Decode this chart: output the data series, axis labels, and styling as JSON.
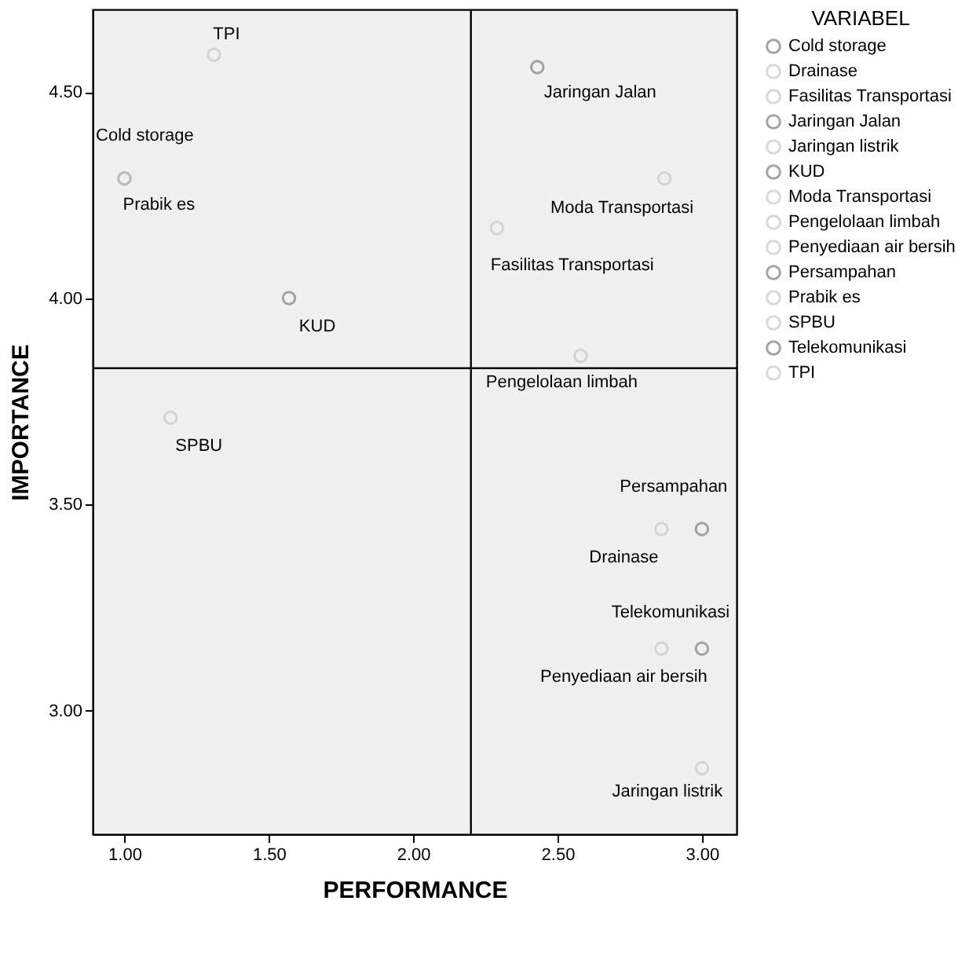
{
  "chart_data": {
    "type": "scatter",
    "xlabel": "PERFORMANCE",
    "ylabel": "IMPORTANCE",
    "legend_title": "VARIABEL",
    "legend": "right",
    "marker": "circle",
    "grid": false,
    "xlim": [
      0.89,
      3.12
    ],
    "ylim": [
      2.7,
      4.7
    ],
    "xticks": [
      {
        "value": 1,
        "label": "1.00"
      },
      {
        "value": 1.5,
        "label": "1.50"
      },
      {
        "value": 2,
        "label": "2.00"
      },
      {
        "value": 2.5,
        "label": "2.50"
      },
      {
        "value": 3,
        "label": "3.00"
      }
    ],
    "yticks": [
      {
        "value": 3,
        "label": "3.00"
      },
      {
        "value": 3.5,
        "label": "3.50"
      },
      {
        "value": 4,
        "label": "4.00"
      },
      {
        "value": 4.5,
        "label": "4.50"
      }
    ],
    "ref_lines": [
      {
        "axis": "x",
        "value": 2.2,
        "color": "#000000"
      },
      {
        "axis": "y",
        "value": 3.83,
        "color": "#000000"
      }
    ],
    "series": [
      {
        "name": "Cold storage",
        "color": "#808080",
        "x": [
          1.0
        ],
        "values": [
          4.29
        ]
      },
      {
        "name": "Drainase",
        "color": "#c8c8c8",
        "x": [
          2.86
        ],
        "values": [
          3.44
        ]
      },
      {
        "name": "Fasilitas Transportasi",
        "color": "#c8c8c8",
        "x": [
          2.29
        ],
        "values": [
          4.17
        ]
      },
      {
        "name": "Jaringan Jalan",
        "color": "#808080",
        "x": [
          2.43
        ],
        "values": [
          4.56
        ]
      },
      {
        "name": "Jaringan listrik",
        "color": "#c8c8c8",
        "x": [
          3.0
        ],
        "values": [
          2.86
        ]
      },
      {
        "name": "KUD",
        "color": "#808080",
        "x": [
          1.57
        ],
        "values": [
          4.0
        ]
      },
      {
        "name": "Moda Transportasi",
        "color": "#c8c8c8",
        "x": [
          2.87
        ],
        "values": [
          4.29
        ]
      },
      {
        "name": "Pengelolaan limbah",
        "color": "#c8c8c8",
        "x": [
          2.58
        ],
        "values": [
          3.86
        ]
      },
      {
        "name": "Penyediaan air bersih",
        "color": "#c8c8c8",
        "x": [
          2.86
        ],
        "values": [
          3.15
        ]
      },
      {
        "name": "Persampahan",
        "color": "#808080",
        "x": [
          3.0
        ],
        "values": [
          3.44
        ]
      },
      {
        "name": "Prabik es",
        "color": "#c8c8c8",
        "x": [
          1.0
        ],
        "values": [
          4.29
        ]
      },
      {
        "name": "SPBU",
        "color": "#c8c8c8",
        "x": [
          1.16
        ],
        "values": [
          3.71
        ]
      },
      {
        "name": "Telekomunikasi",
        "color": "#808080",
        "x": [
          3.0
        ],
        "values": [
          3.15
        ]
      },
      {
        "name": "TPI",
        "color": "#c8c8c8",
        "x": [
          1.31
        ],
        "values": [
          4.59
        ]
      }
    ]
  }
}
